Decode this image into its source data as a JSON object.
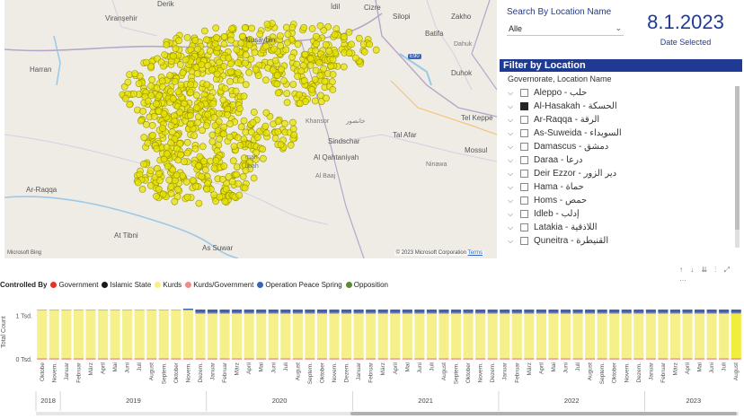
{
  "map": {
    "labels": {
      "derik": "Derik",
      "idil": "İdil",
      "cizre": "Cizre",
      "viransehir": "Viranşehir",
      "silopi": "Silopi",
      "zakho": "Zakho",
      "nusaybin": "Nusaybin",
      "batifa": "Batifa",
      "dahuk": "Dahuk",
      "harran": "Harran",
      "duhok": "Duhok",
      "tel_keppe": "Tel Keppe",
      "khansor": "Khansor",
      "khansor_ar": "خانصور",
      "sindschar": "Sindschar",
      "tal_afar": "Tal Afar",
      "mossul": "Mossul",
      "al_qahtaniyah": "Al Qahtaniyah",
      "al_baaj": "Al Baaj",
      "ninawa": "Ninawa",
      "ar_raqqa": "Ar-Raqqa",
      "at_tibni": "At Tibni",
      "as_suwar": "As Suwar",
      "hasakah_partial1": "mah",
      "hasakah_partial2": "libah",
      "road_badge": "E90"
    },
    "bing": "Microsoft Bing",
    "copyright": "© 2023 Microsoft Corporation",
    "terms": "Terms"
  },
  "search": {
    "label": "Search By Location Name",
    "value": "Alle"
  },
  "date": {
    "value": "8.1.2023",
    "caption": "Date Selected"
  },
  "filter": {
    "header": "Filter by Location",
    "subheader": "Governorate, Location Name",
    "items": [
      {
        "label": "Aleppo - حلب",
        "checked": false
      },
      {
        "label": "Al-Hasakah - الحسكة",
        "checked": true
      },
      {
        "label": "Ar-Raqqa - الرقة",
        "checked": false
      },
      {
        "label": "As-Suweida - السويداء",
        "checked": false
      },
      {
        "label": "Damascus - دمشق",
        "checked": false
      },
      {
        "label": "Daraa - درعا",
        "checked": false
      },
      {
        "label": "Deir Ezzor - دير الزور",
        "checked": false
      },
      {
        "label": "Hama - حماة",
        "checked": false
      },
      {
        "label": "Homs - حمص",
        "checked": false
      },
      {
        "label": "Idleb - إدلب",
        "checked": false
      },
      {
        "label": "Latakia - اللاذقية",
        "checked": false
      },
      {
        "label": "Quneitra - القنيطرة",
        "checked": false
      }
    ]
  },
  "legend": {
    "title": "Controlled By",
    "items": [
      {
        "label": "Government",
        "color": "#e0332b"
      },
      {
        "label": "Islamic State",
        "color": "#1a1a1a"
      },
      {
        "label": "Kurds",
        "color": "#f6f08a"
      },
      {
        "label": "Kurds/Government",
        "color": "#f08a8a"
      },
      {
        "label": "Operation Peace Spring",
        "color": "#3a62b5"
      },
      {
        "label": "Opposition",
        "color": "#5d8a2e"
      }
    ]
  },
  "chart_icons": "↑ ↓ ⇊ ⫶ ⤢ …",
  "chart_data": {
    "type": "bar",
    "stacked": true,
    "ylabel": "Total Count",
    "yticks": [
      "0 Tsd.",
      "1 Tsd."
    ],
    "ylim": [
      0,
      1200
    ],
    "months": [
      "Oktobe",
      "Novem.",
      "Januar",
      "Februar",
      "März",
      "April",
      "Mai",
      "Juni",
      "Juli",
      "August",
      "Septem.",
      "Oktober",
      "Novem.",
      "Dezem.",
      "Januar",
      "Februar",
      "März",
      "April",
      "Mai",
      "Juni",
      "Juli",
      "August",
      "Septem.",
      "Oktober",
      "Novem.",
      "Dezem.",
      "Januar",
      "Februar",
      "März",
      "April",
      "Mai",
      "Juni",
      "Juli",
      "August",
      "Septem.",
      "Oktober",
      "Novem.",
      "Dezem.",
      "Januar",
      "Februar",
      "März",
      "April",
      "Mai",
      "Juni",
      "Juli",
      "August",
      "Septem.",
      "Oktober",
      "Novem.",
      "Dezem.",
      "Januar",
      "Februar",
      "März",
      "April",
      "Mai",
      "Juni",
      "Juli",
      "August"
    ],
    "years": [
      {
        "label": "2018",
        "start": 0,
        "count": 2
      },
      {
        "label": "2019",
        "start": 2,
        "count": 12
      },
      {
        "label": "2020",
        "start": 14,
        "count": 12
      },
      {
        "label": "2021",
        "start": 26,
        "count": 12
      },
      {
        "label": "2022",
        "start": 38,
        "count": 12
      },
      {
        "label": "2023",
        "start": 50,
        "count": 8
      }
    ],
    "series": [
      {
        "name": "Government",
        "color": "#e0332b",
        "values": [
          8,
          8,
          8,
          8,
          8,
          8,
          8,
          8,
          8,
          8,
          8,
          8,
          8,
          8,
          8,
          8,
          8,
          8,
          8,
          8,
          8,
          8,
          8,
          8,
          8,
          8,
          8,
          8,
          8,
          8,
          8,
          8,
          8,
          8,
          8,
          8,
          8,
          8,
          8,
          8,
          8,
          8,
          8,
          8,
          8,
          8,
          8,
          8,
          8,
          8,
          8,
          8,
          8,
          8,
          8,
          8,
          8,
          8
        ]
      },
      {
        "name": "Kurds",
        "color": "#f6f08a",
        "values": [
          1120,
          1120,
          1120,
          1120,
          1120,
          1120,
          1120,
          1120,
          1120,
          1120,
          1120,
          1120,
          1120,
          1030,
          1030,
          1030,
          1030,
          1030,
          1030,
          1030,
          1030,
          1030,
          1030,
          1030,
          1030,
          1030,
          1030,
          1030,
          1030,
          1030,
          1030,
          1030,
          1030,
          1030,
          1030,
          1030,
          1030,
          1030,
          1030,
          1030,
          1030,
          1030,
          1030,
          1030,
          1030,
          1030,
          1030,
          1030,
          1030,
          1030,
          1030,
          1030,
          1030,
          1030,
          1030,
          1030,
          1030,
          1030
        ]
      },
      {
        "name": "Kurds/Government",
        "color": "#f08a8a",
        "values": [
          5,
          5,
          5,
          5,
          5,
          5,
          5,
          5,
          5,
          5,
          5,
          5,
          5,
          25,
          25,
          25,
          25,
          25,
          25,
          25,
          25,
          25,
          25,
          25,
          25,
          25,
          25,
          25,
          25,
          25,
          25,
          25,
          25,
          25,
          25,
          25,
          25,
          25,
          25,
          25,
          25,
          25,
          25,
          25,
          25,
          25,
          25,
          25,
          25,
          25,
          25,
          25,
          25,
          25,
          25,
          25,
          25,
          25
        ]
      },
      {
        "name": "Operation Peace Spring",
        "color": "#3a62b5",
        "values": [
          0,
          0,
          0,
          0,
          0,
          0,
          0,
          0,
          0,
          0,
          0,
          0,
          25,
          75,
          75,
          75,
          75,
          75,
          75,
          75,
          75,
          75,
          75,
          75,
          75,
          75,
          75,
          75,
          75,
          75,
          75,
          75,
          75,
          75,
          75,
          75,
          75,
          75,
          75,
          75,
          75,
          75,
          75,
          75,
          75,
          75,
          75,
          75,
          75,
          75,
          75,
          75,
          75,
          75,
          75,
          75,
          75,
          75
        ]
      }
    ],
    "highlight_index": 57
  },
  "colors": {
    "accent": "#1f3a93",
    "points": "#e7e300"
  }
}
